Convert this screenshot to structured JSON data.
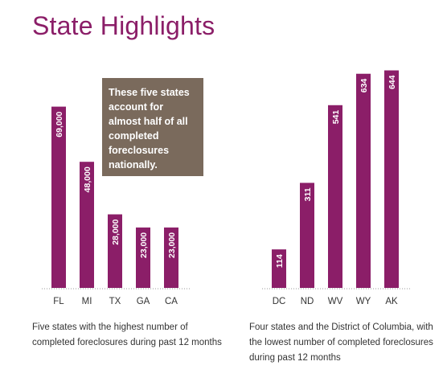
{
  "page": {
    "title": "State Highlights"
  },
  "colors": {
    "bar": "#8b1e68",
    "callout_bg": "#7a6a5c",
    "baseline": "#999999"
  },
  "chart_data": [
    {
      "type": "bar",
      "categories": [
        "FL",
        "MI",
        "TX",
        "GA",
        "CA"
      ],
      "values": [
        69000,
        48000,
        28000,
        23000,
        23000
      ],
      "value_labels": [
        "69,000",
        "48,000",
        "28,000",
        "23,000",
        "23,000"
      ],
      "ylim": [
        0,
        90000
      ],
      "annotation": "These five states account for almost half of all completed foreclosures nationally.",
      "caption": "Five states with the highest number of completed foreclosures during past 12 months"
    },
    {
      "type": "bar",
      "categories": [
        "DC",
        "ND",
        "WV",
        "WY",
        "AK"
      ],
      "values": [
        114,
        311,
        541,
        634,
        644
      ],
      "value_labels": [
        "114",
        "311",
        "541",
        "634",
        "644"
      ],
      "ylim": [
        0,
        700
      ],
      "caption": "Four states and the District of Columbia, with the lowest number of completed foreclosures during past 12 months"
    }
  ]
}
